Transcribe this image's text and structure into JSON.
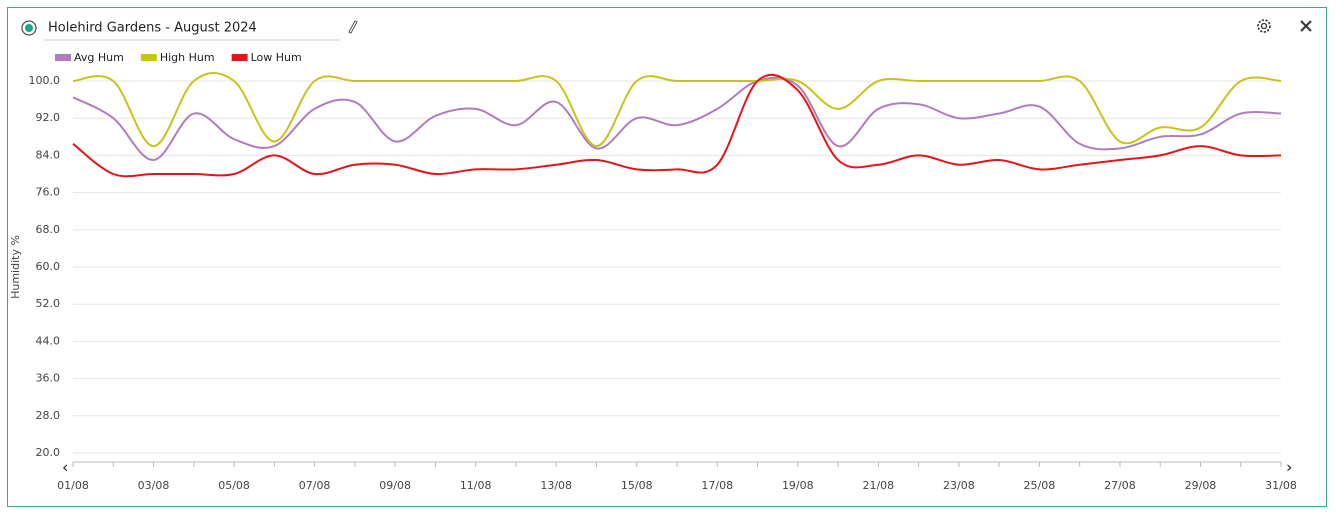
{
  "chart_data": {
    "type": "line",
    "title": "Holehird Gardens - August 2024",
    "y_label": "Humidity %",
    "categories": [
      "01/08",
      null,
      "03/08",
      null,
      "05/08",
      null,
      "07/08",
      null,
      "09/08",
      null,
      "11/08",
      null,
      "13/08",
      null,
      "15/08",
      null,
      "17/08",
      null,
      "19/08",
      null,
      "21/08",
      null,
      "23/08",
      null,
      "25/08",
      null,
      "27/08",
      null,
      "29/08",
      null,
      "31/08"
    ],
    "series": [
      {
        "name": "Avg Hum",
        "color": "#b07cc0",
        "values": [
          96.5,
          92,
          83,
          93,
          87.5,
          86,
          94,
          95.5,
          87,
          92.5,
          94,
          90.5,
          95.5,
          85.5,
          92,
          90.5,
          94,
          100,
          99,
          86,
          94,
          95,
          92,
          93,
          94.5,
          86.5,
          85.5,
          88,
          88.5,
          93,
          93
        ]
      },
      {
        "name": "High Hum",
        "color": "#c8c31a",
        "values": [
          100,
          100,
          86,
          100,
          100,
          87,
          100,
          100,
          100,
          100,
          100,
          100,
          100,
          86,
          100,
          100,
          100,
          100,
          100,
          94,
          100,
          100,
          100,
          100,
          100,
          100,
          87,
          90,
          90,
          100,
          100
        ]
      },
      {
        "name": "Low Hum",
        "color": "#e8131a",
        "values": [
          86.5,
          80,
          80,
          80,
          80,
          84,
          80,
          82,
          82,
          80,
          81,
          81,
          82,
          83,
          81,
          81,
          82,
          100,
          98,
          83,
          82,
          84,
          82,
          83,
          81,
          82,
          83,
          84,
          86,
          84,
          84
        ]
      }
    ],
    "ylim": [
      20,
      100
    ],
    "yticks": [
      {
        "value": 20,
        "label": "20.0"
      },
      {
        "value": 28,
        "label": "28.0"
      },
      {
        "value": 36,
        "label": "36.0"
      },
      {
        "value": 44,
        "label": "44.0"
      },
      {
        "value": 52,
        "label": "52.0"
      },
      {
        "value": 60,
        "label": "60.0"
      },
      {
        "value": 68,
        "label": "68.0"
      },
      {
        "value": 76,
        "label": "76.0"
      },
      {
        "value": 84,
        "label": "84.0"
      },
      {
        "value": 92,
        "label": "92.0"
      },
      {
        "value": 100,
        "label": "100.0"
      }
    ],
    "grid": true
  }
}
